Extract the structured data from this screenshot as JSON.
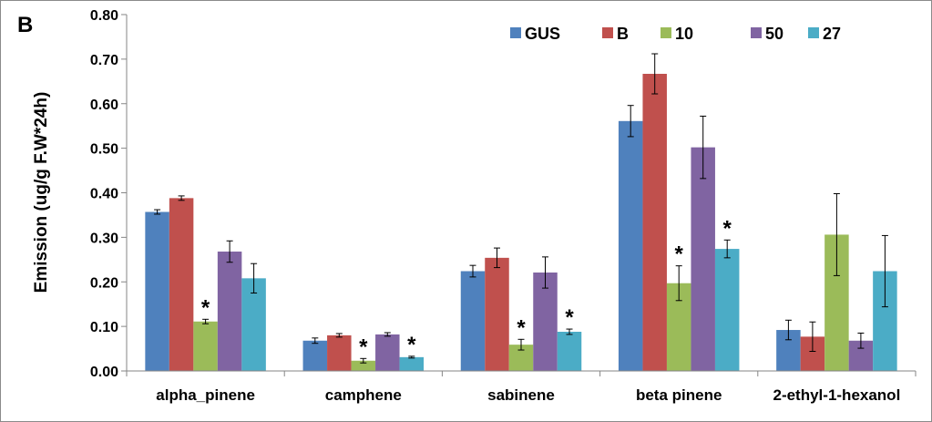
{
  "chart_data": {
    "type": "bar",
    "panel_label": "B",
    "ylabel": "Emission (ug/g F.W*24h)",
    "xlabel": "",
    "ylim": [
      0,
      0.8
    ],
    "yticks": [
      "0.00",
      "0.10",
      "0.20",
      "0.30",
      "0.40",
      "0.50",
      "0.60",
      "0.70",
      "0.80"
    ],
    "categories": [
      "alpha_pinene",
      "camphene",
      "sabinene",
      "beta pinene",
      "2-ethyl-1-hexanol"
    ],
    "legend_position": "top-right",
    "grid": false,
    "series": [
      {
        "name": "GUS",
        "color": "#4f81bd",
        "values": [
          0.357,
          0.068,
          0.224,
          0.561,
          0.092
        ],
        "errors": [
          0.005,
          0.006,
          0.013,
          0.035,
          0.022
        ]
      },
      {
        "name": "B",
        "color": "#c0504d",
        "values": [
          0.388,
          0.08,
          0.254,
          0.667,
          0.077
        ],
        "errors": [
          0.005,
          0.004,
          0.022,
          0.045,
          0.033
        ]
      },
      {
        "name": "10",
        "color": "#9bbb59",
        "values": [
          0.111,
          0.023,
          0.059,
          0.197,
          0.306
        ],
        "errors": [
          0.005,
          0.005,
          0.012,
          0.039,
          0.092
        ]
      },
      {
        "name": "50",
        "color": "#8064a2",
        "values": [
          0.268,
          0.082,
          0.221,
          0.502,
          0.068
        ],
        "errors": [
          0.024,
          0.004,
          0.035,
          0.07,
          0.017
        ]
      },
      {
        "name": "27",
        "color": "#4bacc6",
        "values": [
          0.208,
          0.031,
          0.088,
          0.274,
          0.224
        ],
        "errors": [
          0.033,
          0.002,
          0.006,
          0.02,
          0.08
        ]
      }
    ],
    "significance_marker": "*",
    "significant": [
      {
        "category": 0,
        "series": 2
      },
      {
        "category": 1,
        "series": 2
      },
      {
        "category": 1,
        "series": 4
      },
      {
        "category": 2,
        "series": 2
      },
      {
        "category": 2,
        "series": 4
      },
      {
        "category": 3,
        "series": 2
      },
      {
        "category": 3,
        "series": 4
      }
    ]
  }
}
